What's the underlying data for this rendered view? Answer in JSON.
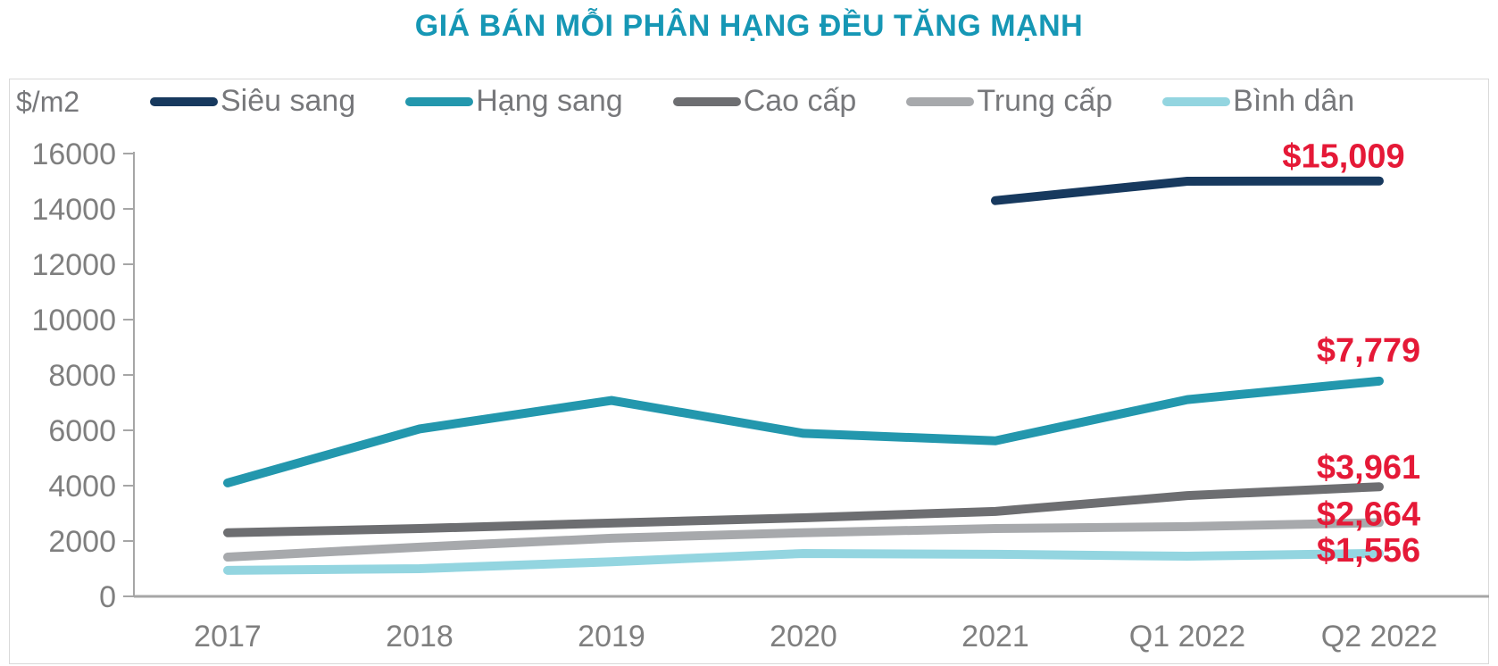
{
  "title": "GIÁ BÁN MỖI PHÂN HẠNG ĐỀU TĂNG MẠNH",
  "unit_label": "$/m2",
  "colors": {
    "title": "#1697b5",
    "data_label": "#e51937",
    "axis_text": "#7f7f7f",
    "axis_line": "#a6a6a6",
    "legend_text": "#77787b",
    "frame_border": "#d9d9d9"
  },
  "chart_data": {
    "type": "line",
    "title": "GIÁ BÁN MỖI PHÂN HẠNG ĐỀU TĂNG MẠNH",
    "ylabel": "$/m2",
    "xlabel": "",
    "ylim": [
      0,
      16000
    ],
    "ytick_step": 2000,
    "yticks": [
      0,
      2000,
      4000,
      6000,
      8000,
      10000,
      12000,
      14000,
      16000
    ],
    "grid": false,
    "legend_position": "top",
    "categories": [
      "2017",
      "2018",
      "2019",
      "2020",
      "2021",
      "Q1 2022",
      "Q2 2022"
    ],
    "series": [
      {
        "name": "Siêu sang",
        "color": "#17395e",
        "values": [
          null,
          null,
          null,
          null,
          14300,
          15000,
          15009
        ],
        "end_label": "$15,009"
      },
      {
        "name": "Hạng sang",
        "color": "#2397ad",
        "values": [
          4100,
          6050,
          7080,
          5890,
          5620,
          7110,
          7779
        ],
        "end_label": "$7,779"
      },
      {
        "name": "Cao cấp",
        "color": "#6d6e71",
        "values": [
          2300,
          2450,
          2650,
          2840,
          3070,
          3640,
          3961
        ],
        "end_label": "$3,961"
      },
      {
        "name": "Trung cấp",
        "color": "#a7a9ac",
        "values": [
          1420,
          1780,
          2100,
          2300,
          2450,
          2520,
          2664
        ],
        "end_label": "$2,664"
      },
      {
        "name": "Bình dân",
        "color": "#93d5e0",
        "values": [
          940,
          1000,
          1250,
          1550,
          1520,
          1450,
          1556
        ],
        "end_label": "$1,556"
      }
    ]
  }
}
